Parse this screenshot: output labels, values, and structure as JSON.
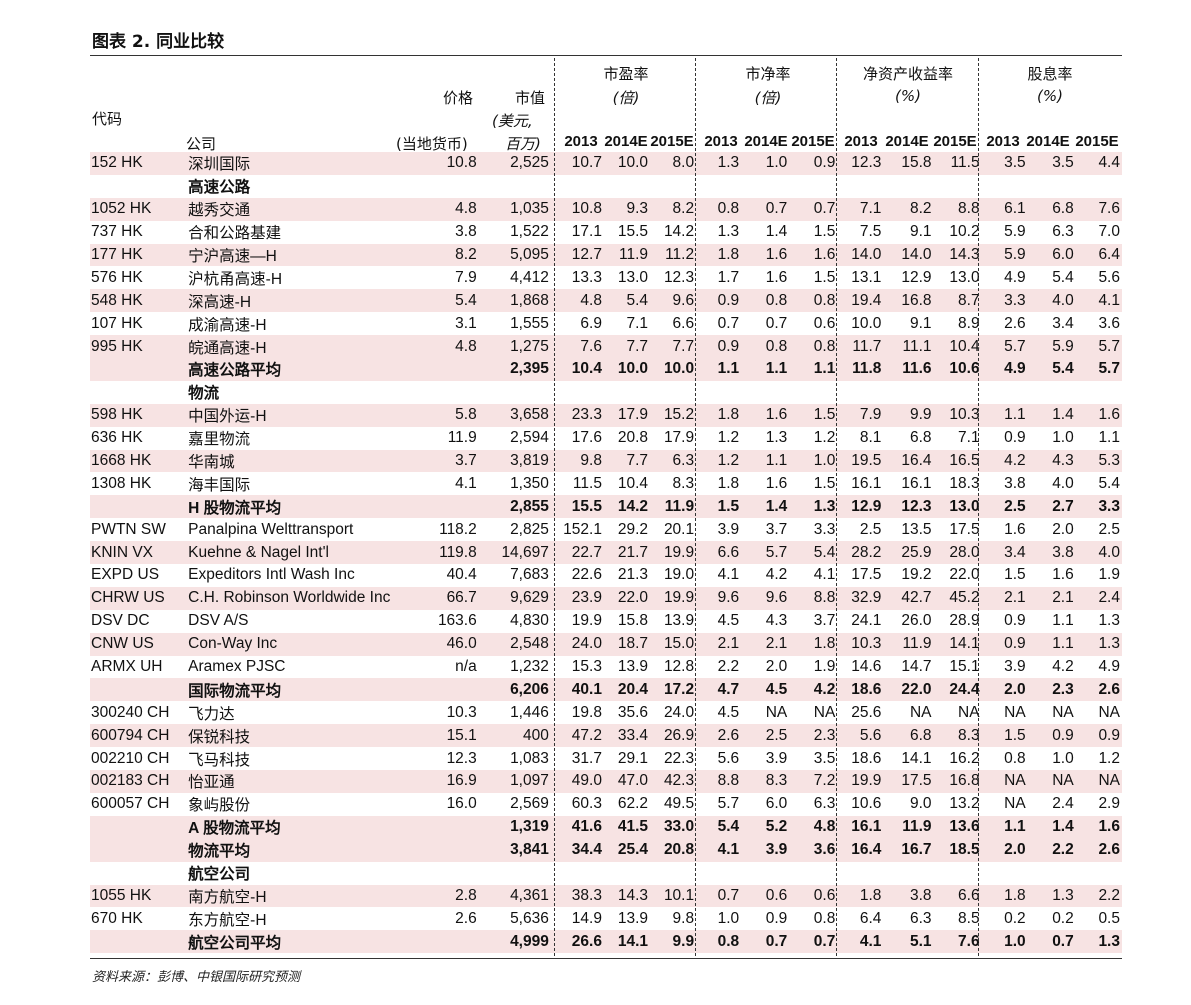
{
  "title": "图表 2. 同业比较",
  "source": "资料来源：彭博、中银国际研究预测",
  "header": {
    "code": "代码",
    "company": "公司",
    "price": "价格",
    "price_unit": "(当地货币)",
    "mktcap": "市值",
    "mktcap_unit1": "(美元,",
    "mktcap_unit2": "百万)",
    "groups": [
      {
        "name": "市盈率",
        "unit": "(倍)"
      },
      {
        "name": "市净率",
        "unit": "(倍)"
      },
      {
        "name": "净资产收益率",
        "unit": "(%)"
      },
      {
        "name": "股息率",
        "unit": "(%)"
      }
    ],
    "years": [
      "2013",
      "2014E",
      "2015E"
    ]
  },
  "rows": [
    {
      "code": "152 HK",
      "name": "深圳国际",
      "price": "10.8",
      "cap": "2,525",
      "v": [
        "10.7",
        "10.0",
        "8.0",
        "1.3",
        "1.0",
        "0.9",
        "12.3",
        "15.8",
        "11.5",
        "3.5",
        "3.5",
        "4.4"
      ],
      "type": "shade"
    },
    {
      "code": "",
      "name": "高速公路",
      "price": "",
      "cap": "",
      "v": [
        "",
        "",
        "",
        "",
        "",
        "",
        "",
        "",
        "",
        "",
        "",
        ""
      ],
      "type": "section"
    },
    {
      "code": "1052 HK",
      "name": "越秀交通",
      "price": "4.8",
      "cap": "1,035",
      "v": [
        "10.8",
        "9.3",
        "8.2",
        "0.8",
        "0.7",
        "0.7",
        "7.1",
        "8.2",
        "8.8",
        "6.1",
        "6.8",
        "7.6"
      ],
      "type": "shade"
    },
    {
      "code": "737 HK",
      "name": "合和公路基建",
      "price": "3.8",
      "cap": "1,522",
      "v": [
        "17.1",
        "15.5",
        "14.2",
        "1.3",
        "1.4",
        "1.5",
        "7.5",
        "9.1",
        "10.2",
        "5.9",
        "6.3",
        "7.0"
      ],
      "type": "plain"
    },
    {
      "code": "177 HK",
      "name": "宁沪高速—H",
      "price": "8.2",
      "cap": "5,095",
      "v": [
        "12.7",
        "11.9",
        "11.2",
        "1.8",
        "1.6",
        "1.6",
        "14.0",
        "14.0",
        "14.3",
        "5.9",
        "6.0",
        "6.4"
      ],
      "type": "shade"
    },
    {
      "code": "576 HK",
      "name": "沪杭甬高速-H",
      "price": "7.9",
      "cap": "4,412",
      "v": [
        "13.3",
        "13.0",
        "12.3",
        "1.7",
        "1.6",
        "1.5",
        "13.1",
        "12.9",
        "13.0",
        "4.9",
        "5.4",
        "5.6"
      ],
      "type": "plain"
    },
    {
      "code": "548 HK",
      "name": "深高速-H",
      "price": "5.4",
      "cap": "1,868",
      "v": [
        "4.8",
        "5.4",
        "9.6",
        "0.9",
        "0.8",
        "0.8",
        "19.4",
        "16.8",
        "8.7",
        "3.3",
        "4.0",
        "4.1"
      ],
      "type": "shade"
    },
    {
      "code": "107 HK",
      "name": "成渝高速-H",
      "price": "3.1",
      "cap": "1,555",
      "v": [
        "6.9",
        "7.1",
        "6.6",
        "0.7",
        "0.7",
        "0.6",
        "10.0",
        "9.1",
        "8.9",
        "2.6",
        "3.4",
        "3.6"
      ],
      "type": "plain"
    },
    {
      "code": "995 HK",
      "name": "皖通高速-H",
      "price": "4.8",
      "cap": "1,275",
      "v": [
        "7.6",
        "7.7",
        "7.7",
        "0.9",
        "0.8",
        "0.8",
        "11.7",
        "11.1",
        "10.4",
        "5.7",
        "5.9",
        "5.7"
      ],
      "type": "shade"
    },
    {
      "code": "",
      "name": "高速公路平均",
      "price": "",
      "cap": "2,395",
      "v": [
        "10.4",
        "10.0",
        "10.0",
        "1.1",
        "1.1",
        "1.1",
        "11.8",
        "11.6",
        "10.6",
        "4.9",
        "5.4",
        "5.7"
      ],
      "type": "avg"
    },
    {
      "code": "",
      "name": "物流",
      "price": "",
      "cap": "",
      "v": [
        "",
        "",
        "",
        "",
        "",
        "",
        "",
        "",
        "",
        "",
        "",
        ""
      ],
      "type": "section"
    },
    {
      "code": "598 HK",
      "name": "中国外运-H",
      "price": "5.8",
      "cap": "3,658",
      "v": [
        "23.3",
        "17.9",
        "15.2",
        "1.8",
        "1.6",
        "1.5",
        "7.9",
        "9.9",
        "10.3",
        "1.1",
        "1.4",
        "1.6"
      ],
      "type": "shade"
    },
    {
      "code": "636 HK",
      "name": "嘉里物流",
      "price": "11.9",
      "cap": "2,594",
      "v": [
        "17.6",
        "20.8",
        "17.9",
        "1.2",
        "1.3",
        "1.2",
        "8.1",
        "6.8",
        "7.1",
        "0.9",
        "1.0",
        "1.1"
      ],
      "type": "plain"
    },
    {
      "code": "1668 HK",
      "name": "华南城",
      "price": "3.7",
      "cap": "3,819",
      "v": [
        "9.8",
        "7.7",
        "6.3",
        "1.2",
        "1.1",
        "1.0",
        "19.5",
        "16.4",
        "16.5",
        "4.2",
        "4.3",
        "5.3"
      ],
      "type": "shade"
    },
    {
      "code": "1308 HK",
      "name": "海丰国际",
      "price": "4.1",
      "cap": "1,350",
      "v": [
        "11.5",
        "10.4",
        "8.3",
        "1.8",
        "1.6",
        "1.5",
        "16.1",
        "16.1",
        "18.3",
        "3.8",
        "4.0",
        "5.4"
      ],
      "type": "plain"
    },
    {
      "code": "",
      "name": "H 股物流平均",
      "price": "",
      "cap": "2,855",
      "v": [
        "15.5",
        "14.2",
        "11.9",
        "1.5",
        "1.4",
        "1.3",
        "12.9",
        "12.3",
        "13.0",
        "2.5",
        "2.7",
        "3.3"
      ],
      "type": "avg"
    },
    {
      "code": "PWTN SW",
      "name": "Panalpina Welttransport",
      "price": "118.2",
      "cap": "2,825",
      "v": [
        "152.1",
        "29.2",
        "20.1",
        "3.9",
        "3.7",
        "3.3",
        "2.5",
        "13.5",
        "17.5",
        "1.6",
        "2.0",
        "2.5"
      ],
      "type": "plain"
    },
    {
      "code": "KNIN VX",
      "name": "Kuehne & Nagel Int'l",
      "price": "119.8",
      "cap": "14,697",
      "v": [
        "22.7",
        "21.7",
        "19.9",
        "6.6",
        "5.7",
        "5.4",
        "28.2",
        "25.9",
        "28.0",
        "3.4",
        "3.8",
        "4.0"
      ],
      "type": "shade"
    },
    {
      "code": "EXPD US",
      "name": "Expeditors Intl Wash Inc",
      "price": "40.4",
      "cap": "7,683",
      "v": [
        "22.6",
        "21.3",
        "19.0",
        "4.1",
        "4.2",
        "4.1",
        "17.5",
        "19.2",
        "22.0",
        "1.5",
        "1.6",
        "1.9"
      ],
      "type": "plain"
    },
    {
      "code": "CHRW US",
      "name": "C.H. Robinson Worldwide Inc",
      "price": "66.7",
      "cap": "9,629",
      "v": [
        "23.9",
        "22.0",
        "19.9",
        "9.6",
        "9.6",
        "8.8",
        "32.9",
        "42.7",
        "45.2",
        "2.1",
        "2.1",
        "2.4"
      ],
      "type": "shade"
    },
    {
      "code": "DSV DC",
      "name": "DSV A/S",
      "price": "163.6",
      "cap": "4,830",
      "v": [
        "19.9",
        "15.8",
        "13.9",
        "4.5",
        "4.3",
        "3.7",
        "24.1",
        "26.0",
        "28.9",
        "0.9",
        "1.1",
        "1.3"
      ],
      "type": "plain"
    },
    {
      "code": "CNW US",
      "name": "Con-Way Inc",
      "price": "46.0",
      "cap": "2,548",
      "v": [
        "24.0",
        "18.7",
        "15.0",
        "2.1",
        "2.1",
        "1.8",
        "10.3",
        "11.9",
        "14.1",
        "0.9",
        "1.1",
        "1.3"
      ],
      "type": "shade"
    },
    {
      "code": "ARMX UH",
      "name": "Aramex PJSC",
      "price": "n/a",
      "cap": "1,232",
      "v": [
        "15.3",
        "13.9",
        "12.8",
        "2.2",
        "2.0",
        "1.9",
        "14.6",
        "14.7",
        "15.1",
        "3.9",
        "4.2",
        "4.9"
      ],
      "type": "plain"
    },
    {
      "code": "",
      "name": "国际物流平均",
      "price": "",
      "cap": "6,206",
      "v": [
        "40.1",
        "20.4",
        "17.2",
        "4.7",
        "4.5",
        "4.2",
        "18.6",
        "22.0",
        "24.4",
        "2.0",
        "2.3",
        "2.6"
      ],
      "type": "avg"
    },
    {
      "code": "300240 CH",
      "name": "飞力达",
      "price": "10.3",
      "cap": "1,446",
      "v": [
        "19.8",
        "35.6",
        "24.0",
        "4.5",
        "NA",
        "NA",
        "25.6",
        "NA",
        "NA",
        "NA",
        "NA",
        "NA"
      ],
      "type": "plain"
    },
    {
      "code": "600794 CH",
      "name": "保锐科技",
      "price": "15.1",
      "cap": "400",
      "v": [
        "47.2",
        "33.4",
        "26.9",
        "2.6",
        "2.5",
        "2.3",
        "5.6",
        "6.8",
        "8.3",
        "1.5",
        "0.9",
        "0.9"
      ],
      "type": "shade"
    },
    {
      "code": "002210 CH",
      "name": "飞马科技",
      "price": "12.3",
      "cap": "1,083",
      "v": [
        "31.7",
        "29.1",
        "22.3",
        "5.6",
        "3.9",
        "3.5",
        "18.6",
        "14.1",
        "16.2",
        "0.8",
        "1.0",
        "1.2"
      ],
      "type": "plain"
    },
    {
      "code": "002183 CH",
      "name": "怡亚通",
      "price": "16.9",
      "cap": "1,097",
      "v": [
        "49.0",
        "47.0",
        "42.3",
        "8.8",
        "8.3",
        "7.2",
        "19.9",
        "17.5",
        "16.8",
        "NA",
        "NA",
        "NA"
      ],
      "type": "shade"
    },
    {
      "code": "600057 CH",
      "name": "象屿股份",
      "price": "16.0",
      "cap": "2,569",
      "v": [
        "60.3",
        "62.2",
        "49.5",
        "5.7",
        "6.0",
        "6.3",
        "10.6",
        "9.0",
        "13.2",
        "NA",
        "2.4",
        "2.9"
      ],
      "type": "plain"
    },
    {
      "code": "",
      "name": "A 股物流平均",
      "price": "",
      "cap": "1,319",
      "v": [
        "41.6",
        "41.5",
        "33.0",
        "5.4",
        "5.2",
        "4.8",
        "16.1",
        "11.9",
        "13.6",
        "1.1",
        "1.4",
        "1.6"
      ],
      "type": "avg"
    },
    {
      "code": "",
      "name": "物流平均",
      "price": "",
      "cap": "3,841",
      "v": [
        "34.4",
        "25.4",
        "20.8",
        "4.1",
        "3.9",
        "3.6",
        "16.4",
        "16.7",
        "18.5",
        "2.0",
        "2.2",
        "2.6"
      ],
      "type": "avg"
    },
    {
      "code": "",
      "name": "航空公司",
      "price": "",
      "cap": "",
      "v": [
        "",
        "",
        "",
        "",
        "",
        "",
        "",
        "",
        "",
        "",
        "",
        ""
      ],
      "type": "section"
    },
    {
      "code": "1055 HK",
      "name": "南方航空-H",
      "price": "2.8",
      "cap": "4,361",
      "v": [
        "38.3",
        "14.3",
        "10.1",
        "0.7",
        "0.6",
        "0.6",
        "1.8",
        "3.8",
        "6.6",
        "1.8",
        "1.3",
        "2.2"
      ],
      "type": "shade"
    },
    {
      "code": "670 HK",
      "name": "东方航空-H",
      "price": "2.6",
      "cap": "5,636",
      "v": [
        "14.9",
        "13.9",
        "9.8",
        "1.0",
        "0.9",
        "0.8",
        "6.4",
        "6.3",
        "8.5",
        "0.2",
        "0.2",
        "0.5"
      ],
      "type": "plain"
    },
    {
      "code": "",
      "name": "航空公司平均",
      "price": "",
      "cap": "4,999",
      "v": [
        "26.6",
        "14.1",
        "9.9",
        "0.8",
        "0.7",
        "0.7",
        "4.1",
        "5.1",
        "7.6",
        "1.0",
        "0.7",
        "1.3"
      ],
      "type": "avg"
    }
  ]
}
